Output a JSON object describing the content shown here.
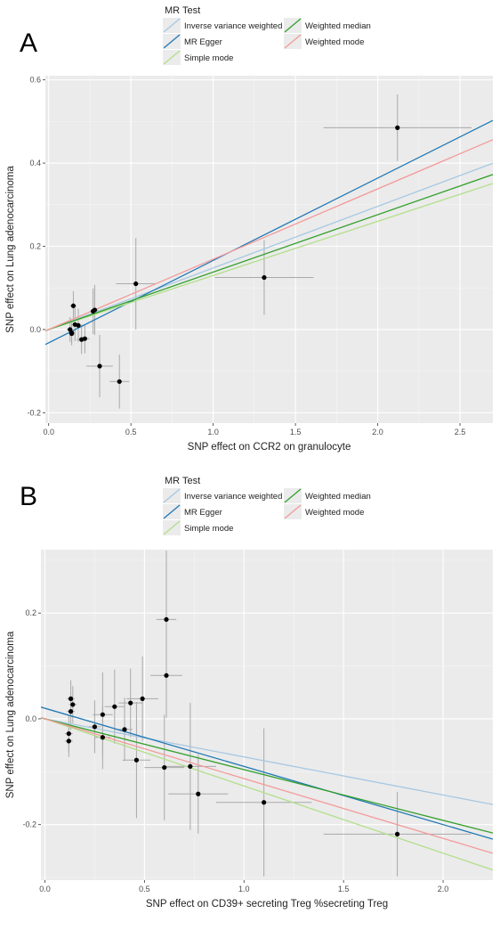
{
  "chart_data": [
    {
      "type": "scatter",
      "panel_label": "A",
      "legend_title": "MR Test",
      "legend_position": "top",
      "legend_entries": [
        {
          "name": "Inverse variance weighted",
          "color": "#a6c8e3"
        },
        {
          "name": "Weighted median",
          "color": "#33a02c"
        },
        {
          "name": "MR Egger",
          "color": "#1f78b4"
        },
        {
          "name": "Weighted mode",
          "color": "#f49a9a"
        },
        {
          "name": "Simple mode",
          "color": "#b2df8a"
        }
      ],
      "xlabel": "SNP effect on CCR2 on granulocyte",
      "ylabel": "SNP effect on Lung adenocarcinoma",
      "xlim": [
        -0.02,
        2.7
      ],
      "ylim": [
        -0.225,
        0.61
      ],
      "x_ticks": [
        0.0,
        0.5,
        1.0,
        1.5,
        2.0,
        2.5
      ],
      "x_tick_labels": [
        "0.0",
        "0.5",
        "1.0",
        "1.5",
        "2.0",
        "2.5"
      ],
      "y_ticks": [
        -0.2,
        0.0,
        0.2,
        0.4,
        0.6
      ],
      "y_tick_labels": [
        "-0.2",
        "0.0",
        "0.2",
        "0.4",
        "0.6"
      ],
      "grid": true,
      "points": [
        {
          "x": 2.12,
          "y": 0.485,
          "xerr": 0.45,
          "yerr": 0.08
        },
        {
          "x": 1.31,
          "y": 0.125,
          "xerr": 0.3,
          "yerr": 0.09
        },
        {
          "x": 0.53,
          "y": 0.11,
          "xerr": 0.12,
          "yerr": 0.11
        },
        {
          "x": 0.43,
          "y": -0.125,
          "xerr": 0.06,
          "yerr": 0.065
        },
        {
          "x": 0.31,
          "y": -0.088,
          "xerr": 0.08,
          "yerr": 0.075
        },
        {
          "x": 0.28,
          "y": 0.047,
          "xerr": 0.02,
          "yerr": 0.06
        },
        {
          "x": 0.27,
          "y": 0.044,
          "xerr": 0.02,
          "yerr": 0.055
        },
        {
          "x": 0.22,
          "y": -0.022,
          "xerr": 0.03,
          "yerr": 0.035
        },
        {
          "x": 0.2,
          "y": -0.024,
          "xerr": 0.03,
          "yerr": 0.035
        },
        {
          "x": 0.18,
          "y": 0.01,
          "xerr": 0.03,
          "yerr": 0.04
        },
        {
          "x": 0.16,
          "y": 0.012,
          "xerr": 0.02,
          "yerr": 0.04
        },
        {
          "x": 0.15,
          "y": 0.057,
          "xerr": 0.02,
          "yerr": 0.035
        },
        {
          "x": 0.14,
          "y": -0.008,
          "xerr": 0.02,
          "yerr": 0.03
        },
        {
          "x": 0.13,
          "y": 0.0,
          "xerr": 0.02,
          "yerr": 0.03
        },
        {
          "x": 0.14,
          "y": -0.01,
          "xerr": 0.02,
          "yerr": 0.025
        }
      ],
      "series": [
        {
          "name": "Inverse variance weighted",
          "color": "#a6c8e3",
          "intercept": 0.0,
          "slope": 0.148
        },
        {
          "name": "MR Egger",
          "color": "#1f78b4",
          "intercept": -0.032,
          "slope": 0.198
        },
        {
          "name": "Simple mode",
          "color": "#b2df8a",
          "intercept": 0.0,
          "slope": 0.13
        },
        {
          "name": "Weighted median",
          "color": "#33a02c",
          "intercept": 0.0,
          "slope": 0.138
        },
        {
          "name": "Weighted mode",
          "color": "#f49a9a",
          "intercept": 0.0,
          "slope": 0.169
        }
      ]
    },
    {
      "type": "scatter",
      "panel_label": "B",
      "legend_title": "MR Test",
      "legend_position": "top",
      "legend_entries": [
        {
          "name": "Inverse variance weighted",
          "color": "#a6c8e3"
        },
        {
          "name": "Weighted median",
          "color": "#33a02c"
        },
        {
          "name": "MR Egger",
          "color": "#1f78b4"
        },
        {
          "name": "Weighted mode",
          "color": "#f49a9a"
        },
        {
          "name": "Simple mode",
          "color": "#b2df8a"
        }
      ],
      "xlabel": "SNP effect on CD39+ secreting Treg %secreting Treg",
      "ylabel": "SNP effect on Lung adenocarcinoma",
      "xlim": [
        -0.02,
        2.25
      ],
      "ylim": [
        -0.305,
        0.32
      ],
      "x_ticks": [
        0.0,
        0.5,
        1.0,
        1.5,
        2.0
      ],
      "x_tick_labels": [
        "0.0",
        "0.5",
        "1.0",
        "1.5",
        "2.0"
      ],
      "y_ticks": [
        -0.2,
        0.0,
        0.2
      ],
      "y_tick_labels": [
        "-0.2",
        "0.0",
        "0.2"
      ],
      "grid": true,
      "points": [
        {
          "x": 1.77,
          "y": -0.218,
          "xerr": 0.37,
          "yerr": 0.08
        },
        {
          "x": 1.1,
          "y": -0.158,
          "xerr": 0.24,
          "yerr": 0.14
        },
        {
          "x": 0.77,
          "y": -0.142,
          "xerr": 0.15,
          "yerr": 0.075
        },
        {
          "x": 0.73,
          "y": -0.09,
          "xerr": 0.13,
          "yerr": 0.12
        },
        {
          "x": 0.6,
          "y": -0.092,
          "xerr": 0.1,
          "yerr": 0.1
        },
        {
          "x": 0.61,
          "y": 0.188,
          "xerr": 0.05,
          "yerr": 0.13
        },
        {
          "x": 0.61,
          "y": 0.082,
          "xerr": 0.08,
          "yerr": 0.08
        },
        {
          "x": 0.49,
          "y": 0.038,
          "xerr": 0.08,
          "yerr": 0.08
        },
        {
          "x": 0.46,
          "y": -0.078,
          "xerr": 0.07,
          "yerr": 0.11
        },
        {
          "x": 0.43,
          "y": 0.03,
          "xerr": 0.06,
          "yerr": 0.065
        },
        {
          "x": 0.4,
          "y": -0.02,
          "xerr": 0.04,
          "yerr": 0.06
        },
        {
          "x": 0.35,
          "y": 0.023,
          "xerr": 0.05,
          "yerr": 0.07
        },
        {
          "x": 0.29,
          "y": 0.008,
          "xerr": 0.05,
          "yerr": 0.08
        },
        {
          "x": 0.29,
          "y": -0.035,
          "xerr": 0.04,
          "yerr": 0.06
        },
        {
          "x": 0.25,
          "y": -0.015,
          "xerr": 0.03,
          "yerr": 0.05
        },
        {
          "x": 0.13,
          "y": 0.038,
          "xerr": 0.02,
          "yerr": 0.035
        },
        {
          "x": 0.14,
          "y": 0.027,
          "xerr": 0.02,
          "yerr": 0.035
        },
        {
          "x": 0.13,
          "y": 0.014,
          "xerr": 0.02,
          "yerr": 0.035
        },
        {
          "x": 0.12,
          "y": -0.028,
          "xerr": 0.02,
          "yerr": 0.035
        },
        {
          "x": 0.12,
          "y": -0.042,
          "xerr": 0.02,
          "yerr": 0.03
        }
      ],
      "series": [
        {
          "name": "Inverse variance weighted",
          "color": "#a6c8e3",
          "intercept": 0.0,
          "slope": -0.072
        },
        {
          "name": "MR Egger",
          "color": "#1f78b4",
          "intercept": 0.02,
          "slope": -0.11
        },
        {
          "name": "Simple mode",
          "color": "#b2df8a",
          "intercept": 0.0,
          "slope": -0.127
        },
        {
          "name": "Weighted median",
          "color": "#33a02c",
          "intercept": 0.0,
          "slope": -0.096
        },
        {
          "name": "Weighted mode",
          "color": "#f49a9a",
          "intercept": 0.0,
          "slope": -0.113
        }
      ]
    }
  ]
}
